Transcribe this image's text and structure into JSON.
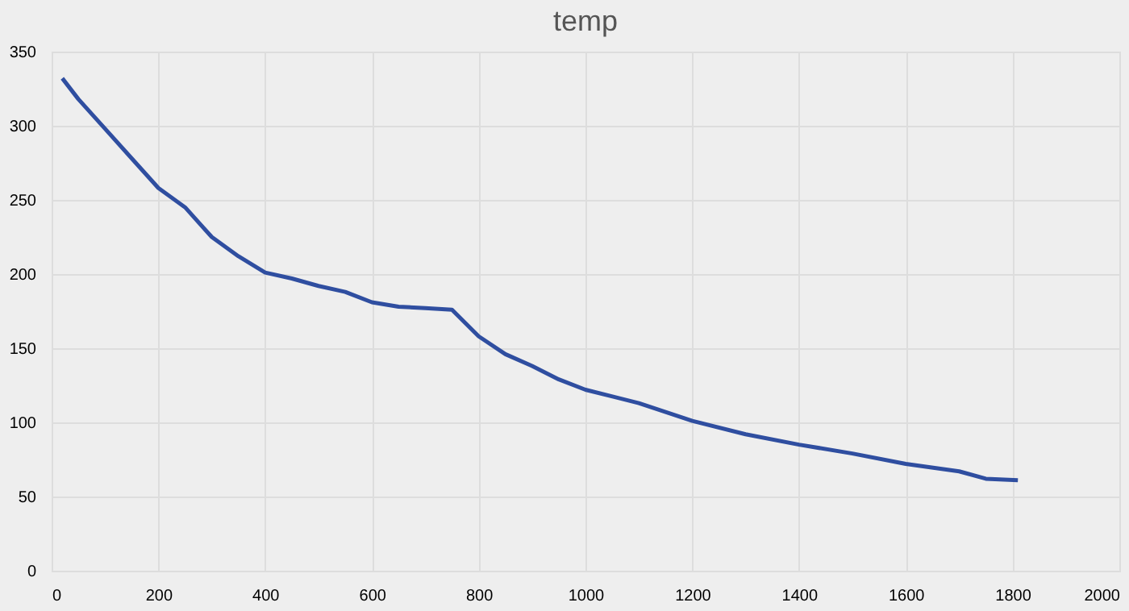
{
  "chart_data": {
    "type": "line",
    "title": "temp",
    "x": [
      20,
      50,
      100,
      150,
      200,
      250,
      300,
      350,
      400,
      450,
      500,
      550,
      600,
      650,
      700,
      750,
      800,
      850,
      900,
      950,
      1000,
      1100,
      1200,
      1300,
      1400,
      1500,
      1600,
      1700,
      1750,
      1810
    ],
    "series": [
      {
        "color": "#2f4ea0",
        "values": [
          332,
          318,
          298,
          278,
          258,
          245,
          225,
          212,
          201,
          197,
          192,
          188,
          181,
          178,
          177,
          176,
          158,
          146,
          138,
          129,
          122,
          113,
          101,
          92,
          85,
          79,
          72,
          67,
          62,
          61
        ]
      }
    ],
    "xlim": [
      0,
      2000
    ],
    "xticks": [
      0,
      200,
      400,
      600,
      800,
      1000,
      1200,
      1400,
      1600,
      1800,
      2000
    ],
    "ylim": [
      0,
      350
    ],
    "yticks": [
      0,
      50,
      100,
      150,
      200,
      250,
      300,
      350
    ],
    "grid": true,
    "marker": "none",
    "line_style": "solid"
  }
}
